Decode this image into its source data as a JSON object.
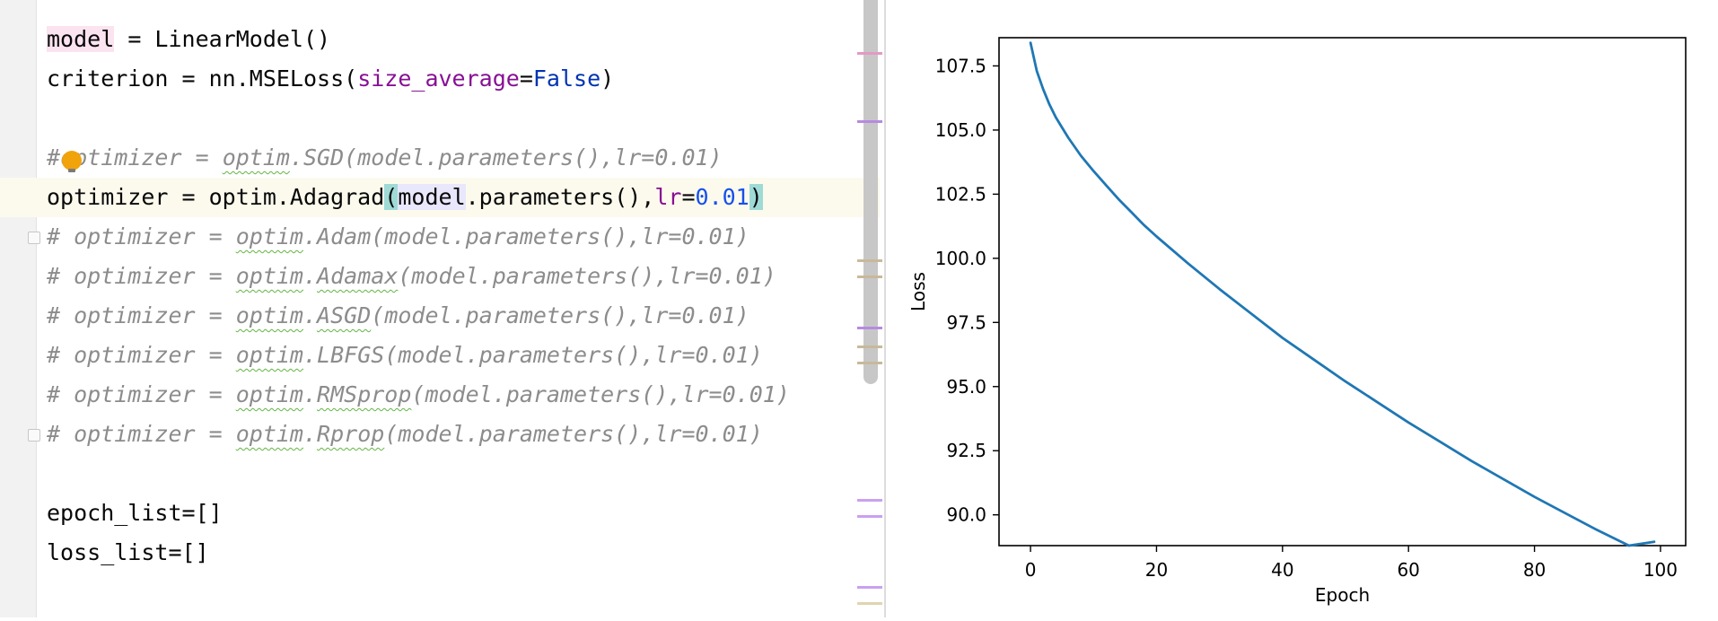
{
  "editor": {
    "lines": [
      {
        "pre": "",
        "var": "model",
        "post": " = LinearModel()"
      },
      {
        "pre": "criterion = nn.MSELoss(",
        "param": "size_average",
        "eq": "=",
        "kw": "False",
        "post": ")"
      },
      {
        "hash": "#",
        "rest_a": "optimizer = ",
        "mod": "optim",
        "rest_b": ".SGD(model.parameters(),lr=0.01)"
      },
      {
        "a": "optimizer = optim.Adagrad",
        "lp": "(",
        "arg": "model",
        "b": ".parameters(),",
        "param": "lr",
        "eq": "=",
        "num": "0.01",
        "rp": ")"
      },
      {
        "pre": "# optimizer = ",
        "mod": "optim",
        "dot": ".",
        "fn": "Adam",
        "post": "(model.parameters(),lr=0.01)"
      },
      {
        "pre": "# optimizer = ",
        "mod": "optim",
        "dot": ".",
        "fn": "Adamax",
        "post": "(model.parameters(),lr=0.01)"
      },
      {
        "pre": "# optimizer = ",
        "mod": "optim",
        "dot": ".",
        "fn": "ASGD",
        "post": "(model.parameters(),lr=0.01)"
      },
      {
        "pre": "# optimizer = ",
        "mod": "optim",
        "dot": ".",
        "fn": "LBFGS",
        "post": "(model.parameters(),lr=0.01)"
      },
      {
        "pre": "# optimizer = ",
        "mod": "optim",
        "dot": ".",
        "fn": "RMSprop",
        "post": "(model.parameters(),lr=0.01)"
      },
      {
        "pre": "# optimizer = ",
        "mod": "optim",
        "dot": ".",
        "fn": "Rprop",
        "post": "(model.parameters(),lr=0.01)"
      },
      {
        "a": "epoch_list",
        "b": "=[]"
      },
      {
        "a": "loss_list",
        "b": "=[]"
      }
    ]
  },
  "colors": {
    "keyword": "#0033b3",
    "number": "#1750eb",
    "parameter": "#871094",
    "comment": "#8c8c8c",
    "line_series": "#1f77b4"
  },
  "chart_data": {
    "type": "line",
    "title": "",
    "xlabel": "Epoch",
    "ylabel": "Loss",
    "xlim": [
      -5,
      104
    ],
    "ylim": [
      88.8,
      108.6
    ],
    "xticks": [
      0,
      20,
      40,
      60,
      80,
      100
    ],
    "yticks": [
      90.0,
      92.5,
      95.0,
      97.5,
      100.0,
      102.5,
      105.0,
      107.5
    ],
    "xtick_labels": [
      "0",
      "20",
      "40",
      "60",
      "80",
      "100"
    ],
    "ytick_labels": [
      "90.0",
      "92.5",
      "95.0",
      "97.5",
      "100.0",
      "102.5",
      "105.0",
      "107.5"
    ],
    "grid": false,
    "series": [
      {
        "x": [
          0,
          1,
          2,
          3,
          4,
          5,
          6,
          7,
          8,
          9,
          10,
          12,
          14,
          16,
          18,
          20,
          25,
          30,
          35,
          40,
          45,
          50,
          55,
          60,
          65,
          70,
          75,
          80,
          85,
          90,
          95,
          99
        ],
        "values": [
          108.4,
          107.3,
          106.6,
          106.0,
          105.5,
          105.1,
          104.7,
          104.35,
          104.0,
          103.7,
          103.4,
          102.85,
          102.3,
          101.8,
          101.3,
          100.85,
          99.8,
          98.8,
          97.85,
          96.9,
          96.05,
          95.2,
          94.4,
          93.6,
          92.85,
          92.1,
          91.4,
          90.7,
          90.05,
          89.4,
          88.8,
          88.95
        ]
      }
    ]
  }
}
